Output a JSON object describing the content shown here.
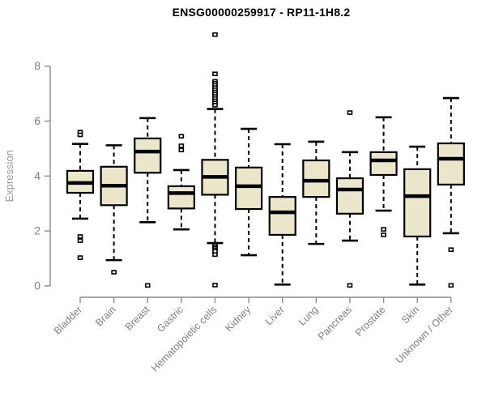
{
  "title": "ENSG00000259917 - RP11-1H8.2",
  "chart_data": {
    "type": "boxplot",
    "title": "ENSG00000259917 - RP11-1H8.2",
    "xlabel": "",
    "ylabel": "Expression",
    "ylim": [
      0,
      8
    ],
    "yticks": [
      0,
      2,
      4,
      6,
      8
    ],
    "grid": false,
    "legend": "none",
    "colors": {
      "box_fill": "#ece7cb",
      "box_stroke": "#000000",
      "median": "#000000",
      "whisker": "#000000",
      "outlier_fill": "#ffffff",
      "outlier_stroke": "#000000",
      "axis": "#8c8c8c",
      "tick_label": "#808080",
      "axis_label": "#9a9a9a",
      "title": "#000000"
    },
    "categories": [
      "Bladder",
      "Brain",
      "Breast",
      "Gastric",
      "Hematopoietic cells",
      "Kidney",
      "Liver",
      "Lung",
      "Pancreas",
      "Prostate",
      "Skin",
      "Unknown / Other"
    ],
    "series": [
      {
        "category": "Bladder",
        "whisker_low": 2.45,
        "q1": 3.39,
        "median": 3.75,
        "q3": 4.19,
        "whisker_high": 5.17,
        "outliers": [
          5.6,
          5.5,
          1.8,
          1.65,
          1.03
        ]
      },
      {
        "category": "Brain",
        "whisker_low": 0.94,
        "q1": 2.94,
        "median": 3.65,
        "q3": 4.34,
        "whisker_high": 5.12,
        "outliers": [
          0.5
        ]
      },
      {
        "category": "Breast",
        "whisker_low": 2.32,
        "q1": 4.12,
        "median": 4.89,
        "q3": 5.37,
        "whisker_high": 6.11,
        "outliers": [
          0.02
        ]
      },
      {
        "category": "Gastric",
        "whisker_low": 2.06,
        "q1": 2.82,
        "median": 3.38,
        "q3": 3.63,
        "whisker_high": 4.22,
        "outliers": [
          5.45,
          5.1,
          4.95
        ]
      },
      {
        "category": "Hematopoietic cells",
        "whisker_low": 1.56,
        "q1": 3.32,
        "median": 3.97,
        "q3": 4.59,
        "whisker_high": 6.44,
        "outliers": [
          9.15,
          7.72,
          7.45,
          7.38,
          7.3,
          7.22,
          7.14,
          7.06,
          6.98,
          6.9,
          6.82,
          6.74,
          6.66,
          6.58,
          1.5,
          1.44,
          1.38,
          1.32,
          1.26,
          1.14,
          0.03
        ]
      },
      {
        "category": "Kidney",
        "whisker_low": 1.12,
        "q1": 2.8,
        "median": 3.63,
        "q3": 4.31,
        "whisker_high": 5.72,
        "outliers": []
      },
      {
        "category": "Liver",
        "whisker_low": 0.05,
        "q1": 1.86,
        "median": 2.68,
        "q3": 3.24,
        "whisker_high": 5.16,
        "outliers": []
      },
      {
        "category": "Lung",
        "whisker_low": 1.53,
        "q1": 3.24,
        "median": 3.83,
        "q3": 4.57,
        "whisker_high": 5.25,
        "outliers": []
      },
      {
        "category": "Pancreas",
        "whisker_low": 1.65,
        "q1": 2.63,
        "median": 3.51,
        "q3": 3.92,
        "whisker_high": 4.87,
        "outliers": [
          6.31,
          0.02
        ]
      },
      {
        "category": "Prostate",
        "whisker_low": 2.74,
        "q1": 4.04,
        "median": 4.57,
        "q3": 4.87,
        "whisker_high": 6.14,
        "outliers": [
          2.06,
          1.86
        ]
      },
      {
        "category": "Skin",
        "whisker_low": 0.05,
        "q1": 1.8,
        "median": 3.27,
        "q3": 4.25,
        "whisker_high": 5.07,
        "outliers": []
      },
      {
        "category": "Unknown / Other",
        "whisker_low": 1.92,
        "q1": 3.69,
        "median": 4.63,
        "q3": 5.19,
        "whisker_high": 6.84,
        "outliers": [
          1.32,
          0.02
        ]
      }
    ]
  }
}
